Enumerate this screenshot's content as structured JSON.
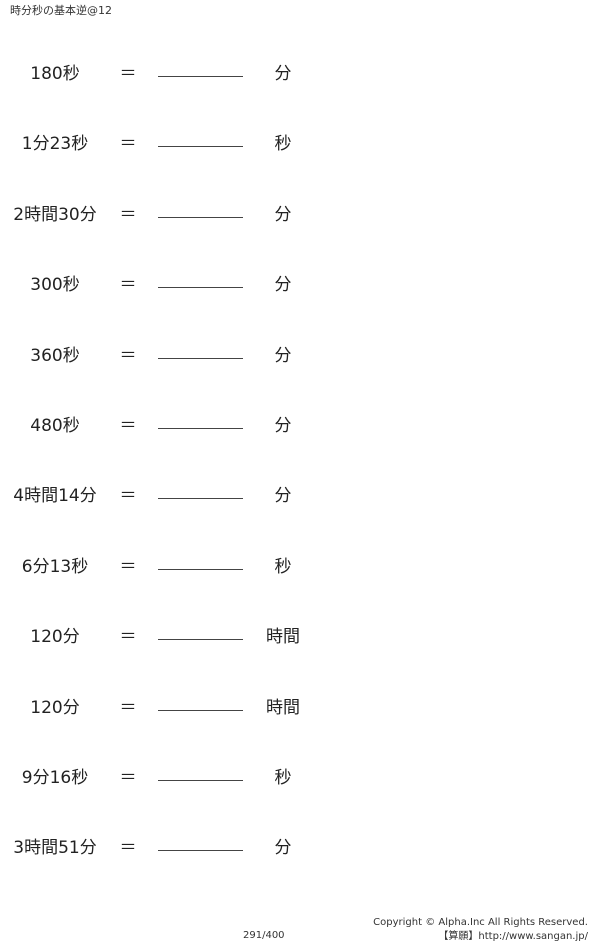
{
  "header": {
    "title": "時分秒の基本逆@12"
  },
  "equals_sign": "＝",
  "problems": [
    {
      "question": "180秒",
      "unit": "分"
    },
    {
      "question": "1分23秒",
      "unit": "秒"
    },
    {
      "question": "2時間30分",
      "unit": "分"
    },
    {
      "question": "300秒",
      "unit": "分"
    },
    {
      "question": "360秒",
      "unit": "分"
    },
    {
      "question": "480秒",
      "unit": "分"
    },
    {
      "question": "4時間14分",
      "unit": "分"
    },
    {
      "question": "6分13秒",
      "unit": "秒"
    },
    {
      "question": "120分",
      "unit": "時間"
    },
    {
      "question": "120分",
      "unit": "時間"
    },
    {
      "question": "9分16秒",
      "unit": "秒"
    },
    {
      "question": "3時間51分",
      "unit": "分"
    }
  ],
  "footer": {
    "page": "291/400",
    "copyright": "Copyright © Alpha.Inc All Rights Reserved.",
    "site": "【算願】http://www.sangan.jp/"
  }
}
